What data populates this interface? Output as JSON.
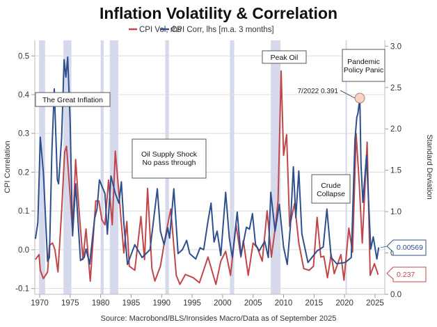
{
  "chart_data": {
    "type": "line",
    "title": "Inflation Volatility & Correlation",
    "source": "Source: Macrobond/BLS/Ironsides Macro/Data as of September 2025",
    "xlabel": "",
    "ylabel_left": "CPI Correlation",
    "ylabel_right": "Standard Deviation",
    "xlim": [
      1969.2,
      2026.6
    ],
    "ylim_left": [
      -0.115,
      0.54
    ],
    "ylim_right": [
      0.0,
      3.07
    ],
    "x_ticks": [
      1970,
      1975,
      1980,
      1985,
      1990,
      1995,
      2000,
      2005,
      2010,
      2015,
      2020,
      2025
    ],
    "y_ticks_left": [
      -0.1,
      0.0,
      0.1,
      0.2,
      0.3,
      0.4,
      0.5
    ],
    "y_ticks_left_labels": [
      "-0.1",
      "0.0",
      "0.1",
      "0.2",
      "0.3",
      "0.4",
      "0.5"
    ],
    "y_ticks_right": [
      0.0,
      0.5,
      1.0,
      1.5,
      2.0,
      2.5,
      3.0
    ],
    "y_ticks_right_labels": [
      "0.0",
      "0.5",
      "1.0",
      "1.5",
      "2.0",
      "2.5",
      "3.0"
    ],
    "grid": true,
    "legend_position": "top-center",
    "colors": {
      "vol": "#c0464a",
      "corr": "#2d4f8e",
      "recession": "#d6d9ec"
    },
    "recessions": [
      [
        1969.9,
        1970.9
      ],
      [
        1973.9,
        1975.2
      ],
      [
        1980.0,
        1980.5
      ],
      [
        1981.5,
        1982.9
      ],
      [
        1990.6,
        1991.2
      ],
      [
        2001.2,
        2001.9
      ],
      [
        2007.9,
        2009.5
      ],
      [
        2020.15,
        2020.4
      ]
    ],
    "series": [
      {
        "name": "CPI Vol, rhs",
        "axis": "right",
        "color": "#c0464a",
        "last_value_label": "0.237",
        "points": [
          [
            1969.3,
            0.42
          ],
          [
            1969.9,
            0.48
          ],
          [
            1970.1,
            0.29
          ],
          [
            1970.6,
            0.19
          ],
          [
            1971.3,
            0.27
          ],
          [
            1971.6,
            0.59
          ],
          [
            1972.1,
            0.62
          ],
          [
            1972.5,
            0.54
          ],
          [
            1973.0,
            0.27
          ],
          [
            1973.6,
            1.01
          ],
          [
            1974.1,
            1.72
          ],
          [
            1974.4,
            1.79
          ],
          [
            1974.9,
            1.3
          ],
          [
            1975.4,
            0.75
          ],
          [
            1975.9,
            1.63
          ],
          [
            1976.4,
            1.07
          ],
          [
            1977.1,
            0.42
          ],
          [
            1977.6,
            0.79
          ],
          [
            1978.3,
            0.16
          ],
          [
            1979.2,
            1.13
          ],
          [
            1979.7,
            1.13
          ],
          [
            1980.2,
            0.9
          ],
          [
            1980.7,
            0.84
          ],
          [
            1981.3,
            1.38
          ],
          [
            1981.9,
            0.84
          ],
          [
            1982.4,
            1.73
          ],
          [
            1982.9,
            1.3
          ],
          [
            1983.8,
            0.5
          ],
          [
            1984.3,
            0.88
          ],
          [
            1984.7,
            0.34
          ],
          [
            1985.6,
            0.29
          ],
          [
            1986.6,
            0.94
          ],
          [
            1987.2,
            0.42
          ],
          [
            1987.7,
            1.28
          ],
          [
            1988.4,
            0.31
          ],
          [
            1988.9,
            0.16
          ],
          [
            1989.8,
            0.34
          ],
          [
            1990.6,
            0.69
          ],
          [
            1991.5,
            1.03
          ],
          [
            1992.4,
            0.23
          ],
          [
            1993.0,
            0.12
          ],
          [
            1993.9,
            0.24
          ],
          [
            1995.2,
            0.2
          ],
          [
            1996.2,
            0.14
          ],
          [
            1997.6,
            0.45
          ],
          [
            1998.9,
            0.12
          ],
          [
            1999.7,
            0.4
          ],
          [
            2000.5,
            0.52
          ],
          [
            2001.3,
            0.23
          ],
          [
            2002.2,
            0.84
          ],
          [
            2003.0,
            0.45
          ],
          [
            2003.4,
            0.65
          ],
          [
            2004.2,
            0.23
          ],
          [
            2005.0,
            0.62
          ],
          [
            2005.7,
            0.56
          ],
          [
            2006.5,
            0.4
          ],
          [
            2007.3,
            1.01
          ],
          [
            2008.0,
            0.45
          ],
          [
            2008.7,
            0.84
          ],
          [
            2009.1,
            1.13
          ],
          [
            2009.6,
            2.7
          ],
          [
            2010.0,
            1.68
          ],
          [
            2010.5,
            1.93
          ],
          [
            2011.0,
            0.82
          ],
          [
            2011.8,
            1.1
          ],
          [
            2012.5,
            0.62
          ],
          [
            2013.3,
            0.31
          ],
          [
            2014.2,
            0.29
          ],
          [
            2014.9,
            0.34
          ],
          [
            2015.5,
            0.93
          ],
          [
            2016.1,
            0.45
          ],
          [
            2016.6,
            0.46
          ],
          [
            2017.2,
            0.2
          ],
          [
            2017.8,
            0.48
          ],
          [
            2018.3,
            0.25
          ],
          [
            2019.4,
            0.48
          ],
          [
            2019.9,
            0.17
          ],
          [
            2020.7,
            0.8
          ],
          [
            2021.3,
            0.51
          ],
          [
            2021.9,
            1.94
          ],
          [
            2022.4,
            1.35
          ],
          [
            2022.9,
            0.62
          ],
          [
            2023.7,
            1.84
          ],
          [
            2024.2,
            0.23
          ],
          [
            2024.9,
            0.37
          ],
          [
            2025.5,
            0.237
          ]
        ]
      },
      {
        "name": "CPI Corr, lhs [m.a. 3 months]",
        "axis": "left",
        "color": "#2d4f8e",
        "last_value_label": "0.00569",
        "points": [
          [
            1969.3,
            0.028
          ],
          [
            1969.7,
            0.07
          ],
          [
            1970.1,
            0.29
          ],
          [
            1970.6,
            0.2
          ],
          [
            1971.3,
            -0.03
          ],
          [
            1971.6,
            -0.02
          ],
          [
            1972.0,
            0.25
          ],
          [
            1972.4,
            0.415
          ],
          [
            1972.9,
            0.18
          ],
          [
            1973.1,
            0.17
          ],
          [
            1973.6,
            0.29
          ],
          [
            1974.0,
            0.49
          ],
          [
            1974.3,
            0.445
          ],
          [
            1974.6,
            0.497
          ],
          [
            1975.0,
            0.33
          ],
          [
            1975.4,
            0.036
          ],
          [
            1975.9,
            0.17
          ],
          [
            1976.7,
            -0.028
          ],
          [
            1977.3,
            -0.02
          ],
          [
            1977.6,
            0.002
          ],
          [
            1978.2,
            -0.037
          ],
          [
            1979.0,
            0.08
          ],
          [
            1979.4,
            0.105
          ],
          [
            1979.8,
            0.18
          ],
          [
            1980.3,
            0.16
          ],
          [
            1980.7,
            0.145
          ],
          [
            1981.1,
            0.04
          ],
          [
            1981.7,
            0.19
          ],
          [
            1982.4,
            0.145
          ],
          [
            1983.0,
            0.12
          ],
          [
            1983.4,
            0.175
          ],
          [
            1983.8,
            0.07
          ],
          [
            1984.4,
            -0.038
          ],
          [
            1985.6,
            0.013
          ],
          [
            1986.8,
            -0.02
          ],
          [
            1988.1,
            0.0
          ],
          [
            1989.3,
            0.157
          ],
          [
            1989.8,
            0.048
          ],
          [
            1990.4,
            0.013
          ],
          [
            1991.0,
            0.057
          ],
          [
            1991.3,
            0.03
          ],
          [
            1992.0,
            0.157
          ],
          [
            1992.7,
            -0.01
          ],
          [
            1993.4,
            0.0
          ],
          [
            1994.1,
            0.024
          ],
          [
            1994.6,
            -0.01
          ],
          [
            1995.6,
            -0.024
          ],
          [
            1996.3,
            0.005
          ],
          [
            1996.9,
            0.0
          ],
          [
            1997.6,
            0.074
          ],
          [
            1998.1,
            0.12
          ],
          [
            1998.6,
            0.02
          ],
          [
            1999.1,
            0.048
          ],
          [
            1999.7,
            -0.015
          ],
          [
            2000.5,
            0.148
          ],
          [
            2001.1,
            0.031
          ],
          [
            2001.6,
            -0.02
          ],
          [
            2002.4,
            0.097
          ],
          [
            2003.0,
            -0.015
          ],
          [
            2003.9,
            0.058
          ],
          [
            2004.4,
            0.053
          ],
          [
            2004.9,
            0.093
          ],
          [
            2005.4,
            0.014
          ],
          [
            2006.0,
            -0.003
          ],
          [
            2006.9,
            0.022
          ],
          [
            2007.5,
            -0.02
          ],
          [
            2007.9,
            0.148
          ],
          [
            2008.6,
            0.048
          ],
          [
            2009.3,
            0.117
          ],
          [
            2010.0,
            0.007
          ],
          [
            2010.6,
            -0.038
          ],
          [
            2011.1,
            0.058
          ],
          [
            2011.6,
            0.214
          ],
          [
            2012.0,
            0.083
          ],
          [
            2012.5,
            0.203
          ],
          [
            2013.0,
            0.041
          ],
          [
            2014.0,
            -0.033
          ],
          [
            2015.5,
            -0.003
          ],
          [
            2016.5,
            0.007
          ],
          [
            2017.1,
            0.105
          ],
          [
            2017.8,
            -0.02
          ],
          [
            2018.7,
            -0.036
          ],
          [
            2020.1,
            -0.033
          ],
          [
            2021.1,
            -0.02
          ],
          [
            2021.7,
            0.283
          ],
          [
            2022.0,
            0.341
          ],
          [
            2022.2,
            0.352
          ],
          [
            2022.5,
            0.391
          ],
          [
            2022.7,
            0.22
          ],
          [
            2023.0,
            0.122
          ],
          [
            2023.6,
            0.243
          ],
          [
            2024.3,
            0.002
          ],
          [
            2024.7,
            0.033
          ],
          [
            2025.3,
            -0.024
          ],
          [
            2025.6,
            0.00569
          ]
        ]
      }
    ],
    "annotations": {
      "great_inflation": "The Great Inflation",
      "oil_supply_1": "Oil Supply Shock",
      "oil_supply_2": "No pass through",
      "peak_oil": "Peak Oil",
      "pandemic_1": "Pandemic",
      "pandemic_2": "Policy Panic",
      "crude_1": "Crude",
      "crude_2": "Collapse",
      "callout": "7/2022 0.391",
      "callout_point": [
        2022.5,
        0.391
      ]
    }
  }
}
